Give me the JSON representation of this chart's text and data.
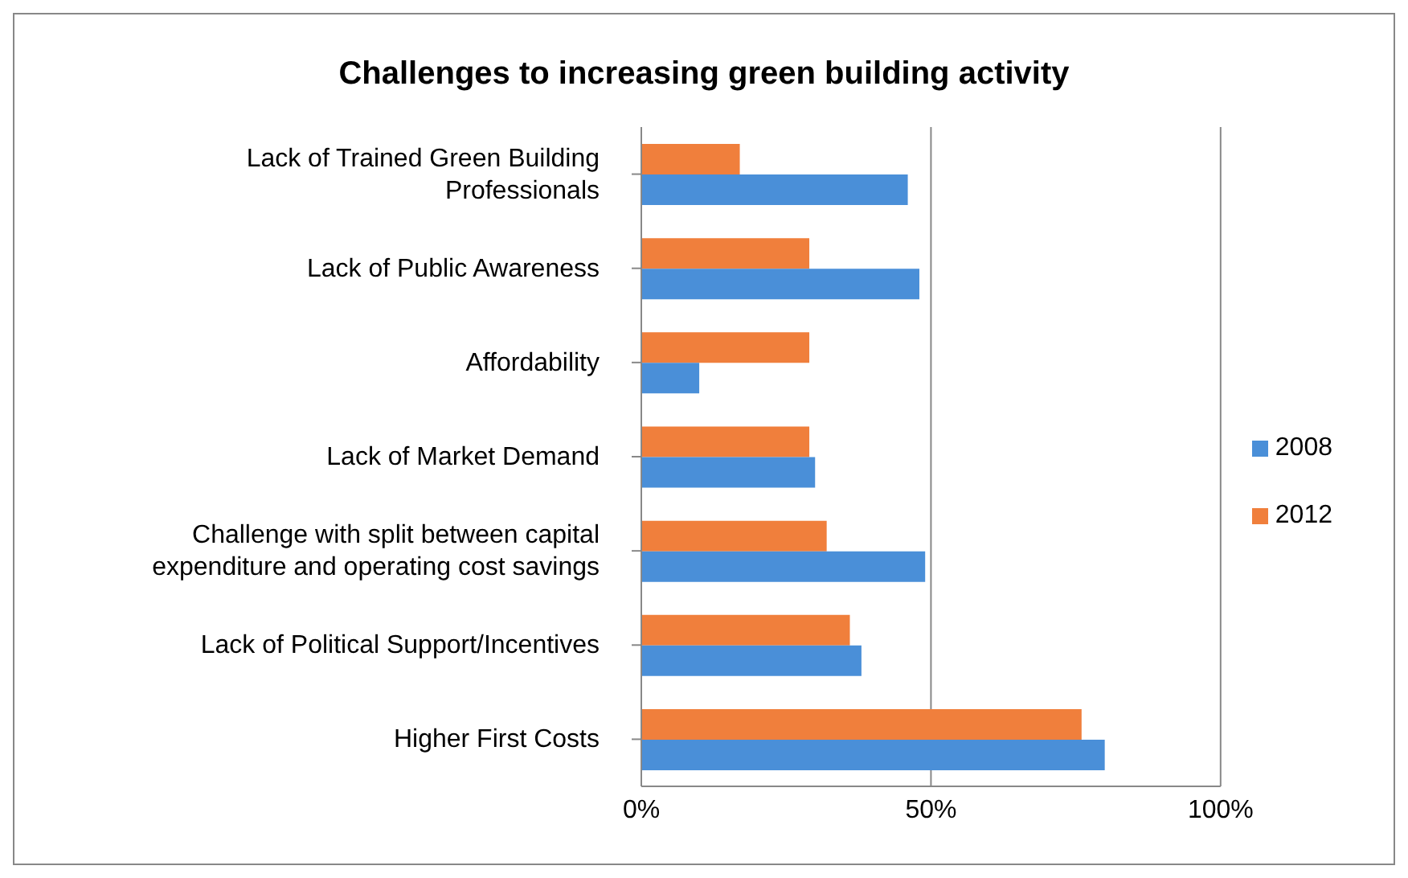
{
  "chart_data": {
    "type": "bar",
    "orientation": "horizontal",
    "title": "Challenges to increasing green building activity",
    "categories": [
      "Lack of Trained Green Building Professionals",
      "Lack of Public Awareness",
      "Affordability",
      "Lack of Market Demand",
      "Challenge with split between capital expenditure and operating cost savings",
      "Lack of Political Support/Incentives",
      "Higher First Costs"
    ],
    "series": [
      {
        "name": "2012",
        "color": "#f07f3c",
        "values": [
          17,
          29,
          29,
          29,
          32,
          36,
          76
        ]
      },
      {
        "name": "2008",
        "color": "#4a8fd8",
        "values": [
          46,
          48,
          10,
          30,
          49,
          38,
          80
        ]
      }
    ],
    "xlim": [
      0,
      100
    ],
    "xticks": [
      {
        "value": 0,
        "label": "0%"
      },
      {
        "value": 50,
        "label": "50%"
      },
      {
        "value": 100,
        "label": "100%"
      }
    ],
    "grid": "x",
    "legend": "right"
  }
}
